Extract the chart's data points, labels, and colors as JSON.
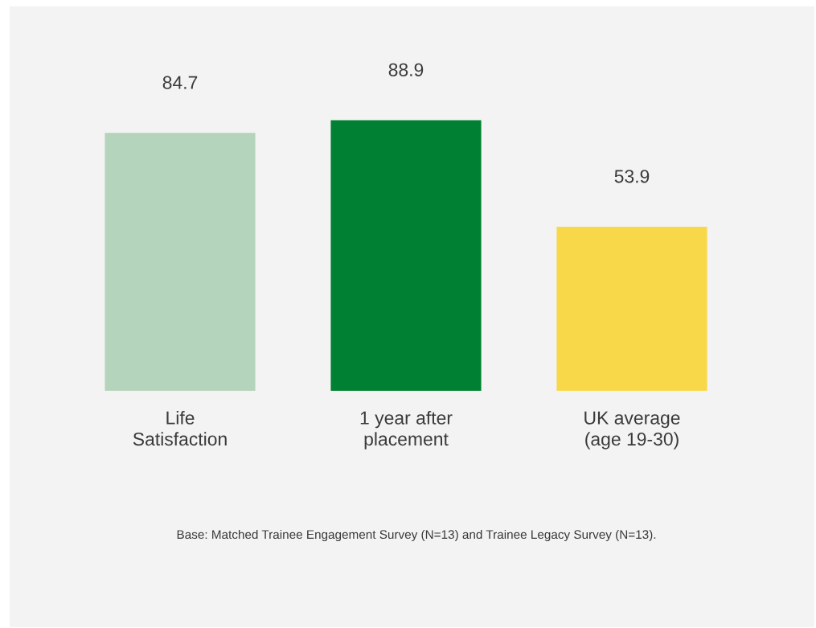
{
  "chart_data": {
    "type": "bar",
    "categories": [
      "Life\nSatisfaction",
      "1 year after\nplacement",
      "UK average\n(age 19-30)"
    ],
    "values": [
      84.7,
      88.9,
      53.9
    ],
    "colors": [
      "#b5d4bc",
      "#008033",
      "#f8d849"
    ],
    "data_labels": true,
    "annotations": [
      "Base: Matched Trainee Engagement Survey (N=13) and Trainee Legacy Survey (N=13)."
    ]
  }
}
